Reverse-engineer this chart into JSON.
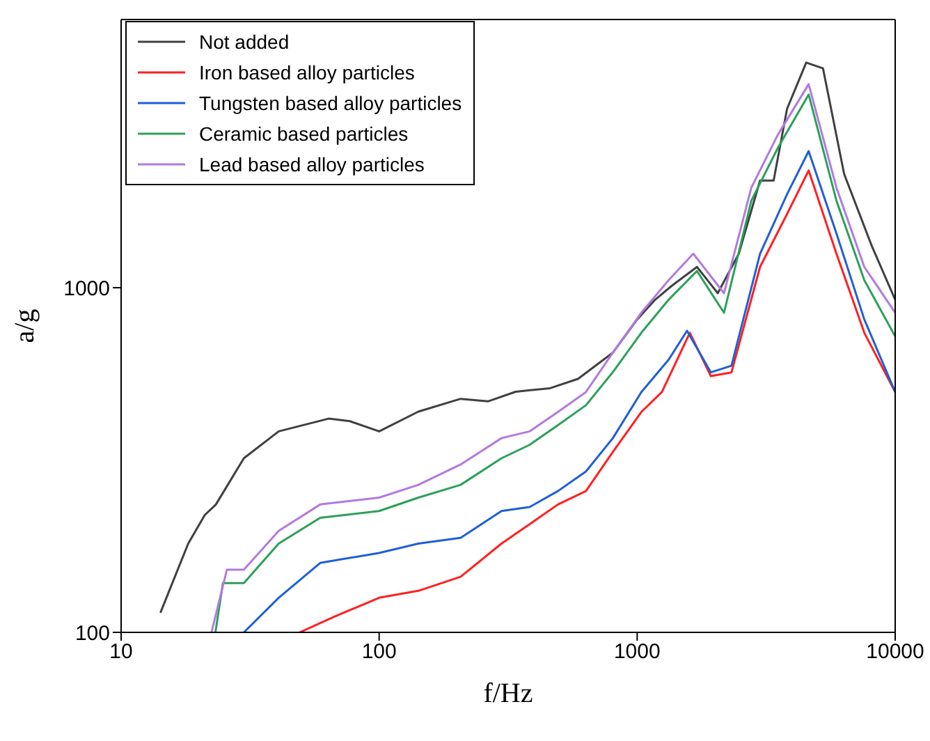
{
  "chart_data": {
    "type": "line",
    "xlabel": "f/Hz",
    "ylabel": "a/g",
    "log": "xy",
    "xlim": [
      10,
      10000
    ],
    "xticks": [
      10,
      100,
      1000,
      10000
    ],
    "ylim": [
      100,
      6000
    ],
    "yticks": [
      100,
      1000
    ],
    "grid": false,
    "legend": "top left",
    "marker": "none",
    "line_style": "solid",
    "series": [
      {
        "name": "Not added",
        "color": "#404040",
        "x": [
          14.2,
          18.2,
          21.1,
          23.3,
          29.9,
          40.8,
          63.7,
          77,
          100,
          142,
          207,
          264,
          338,
          460,
          590,
          805,
          1000,
          1174,
          1358,
          1705,
          2053,
          2477,
          2994,
          3380,
          3810,
          4520,
          5250,
          6340,
          8130,
          10000
        ],
        "values": [
          114,
          181,
          219,
          235,
          320,
          383,
          417,
          410,
          383,
          437,
          476,
          468,
          499,
          511,
          544,
          648,
          809,
          923,
          1011,
          1149,
          964,
          1255,
          2046,
          2046,
          3304,
          4500,
          4330,
          2138,
          1317,
          923
        ]
      },
      {
        "name": "Iron based alloy particles",
        "color": "#ff2020",
        "x": [
          49.2,
          66.9,
          100,
          142,
          207,
          298,
          383,
          493,
          633,
          805,
          1038,
          1247,
          1600,
          1930,
          2320,
          2994,
          3810,
          4620,
          5920,
          7590,
          10000
        ],
        "values": [
          100,
          111,
          126,
          132,
          145,
          181,
          206,
          235,
          257,
          334,
          436,
          498,
          740,
          554,
          568,
          1149,
          1636,
          2188,
          1255,
          740,
          498
        ]
      },
      {
        "name": "Tungsten based alloy particles",
        "color": "#1f5fd6",
        "x": [
          29.9,
          40.8,
          59.1,
          100,
          142,
          207,
          298,
          383,
          493,
          633,
          805,
          1038,
          1324,
          1560,
          1930,
          2320,
          2994,
          3810,
          4620,
          5920,
          7590,
          10000
        ],
        "values": [
          100,
          126,
          159,
          170,
          181,
          188,
          225,
          231,
          257,
          293,
          366,
          498,
          618,
          750,
          568,
          594,
          1255,
          1867,
          2490,
          1437,
          809,
          498
        ]
      },
      {
        "name": "Ceramic based particles",
        "color": "#2ca05a",
        "x": [
          23.2,
          24.8,
          29.9,
          40.8,
          59.1,
          100,
          142,
          207,
          298,
          383,
          493,
          633,
          805,
          1038,
          1324,
          1705,
          2170,
          2770,
          3510,
          4620,
          5920,
          7590,
          10000
        ],
        "values": [
          100,
          139,
          139,
          181,
          215,
          225,
          246,
          268,
          320,
          350,
          399,
          456,
          569,
          740,
          923,
          1118,
          846,
          1788,
          2546,
          3635,
          1788,
          1052,
          722
        ]
      },
      {
        "name": "Lead based alloy particles",
        "color": "#b07ae0",
        "x": [
          22.4,
          25.7,
          29.9,
          40.8,
          59.1,
          100,
          142,
          207,
          298,
          383,
          493,
          633,
          805,
          1038,
          1324,
          1650,
          2170,
          2770,
          3510,
          4620,
          5920,
          7590,
          10000
        ],
        "values": [
          100,
          152,
          152,
          197,
          235,
          246,
          268,
          307,
          366,
          383,
          436,
          498,
          648,
          846,
          1052,
          1255,
          964,
          1951,
          2780,
          3895,
          1951,
          1149,
          846
        ]
      }
    ]
  }
}
